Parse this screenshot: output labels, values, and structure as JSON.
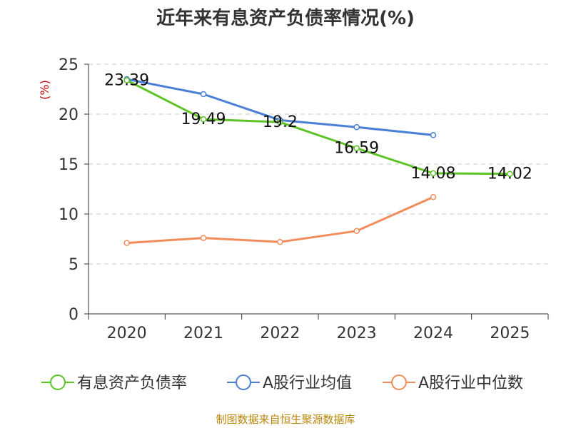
{
  "chart_data": {
    "type": "line",
    "title": "近年来有息资产负债率情况(%)",
    "ylabel": "(%)",
    "xlabel": "",
    "categories": [
      "2020",
      "2021",
      "2022",
      "2023",
      "2024",
      "2025"
    ],
    "ylim": [
      0,
      25
    ],
    "yticks": [
      0,
      5,
      10,
      15,
      20,
      25
    ],
    "grid": true,
    "series": [
      {
        "name": "有息资产负债率",
        "color": "#5ec425",
        "values": [
          23.39,
          19.49,
          19.2,
          16.59,
          14.08,
          14.02
        ],
        "labels": [
          "23.39",
          "19.49",
          "19.2",
          "16.59",
          "14.08",
          "14.02"
        ]
      },
      {
        "name": "A股行业均值",
        "color": "#4a7fd6",
        "values": [
          23.5,
          22.0,
          19.4,
          18.7,
          17.9,
          null
        ]
      },
      {
        "name": "A股行业中位数",
        "color": "#f28c5a",
        "values": [
          7.1,
          7.6,
          7.2,
          8.3,
          11.7,
          null
        ]
      }
    ],
    "legend_position": "bottom",
    "source": "制图数据来自恒生聚源数据库"
  }
}
